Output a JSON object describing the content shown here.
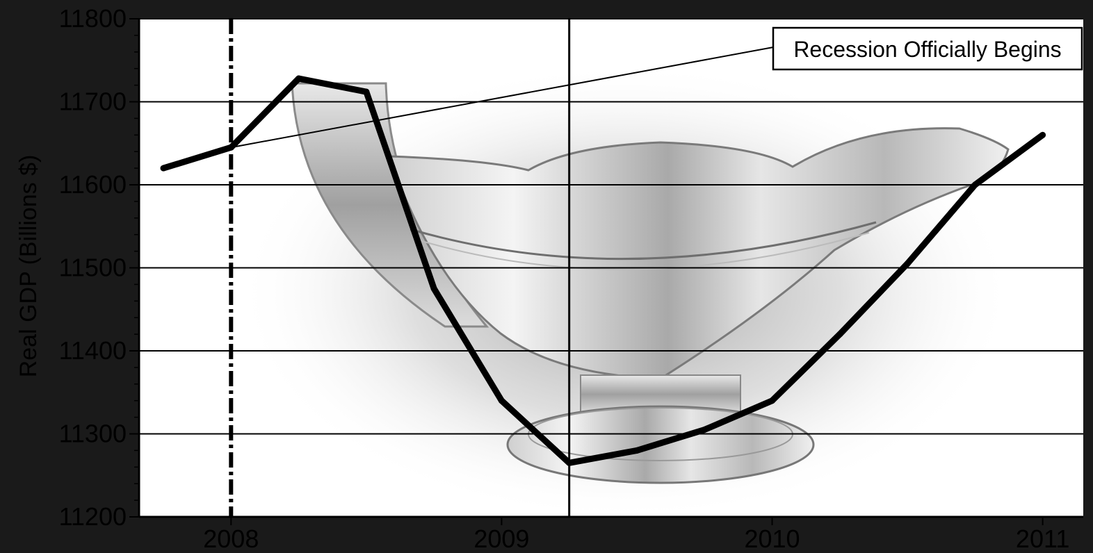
{
  "colors": {
    "frame": "#1a1a1a",
    "plot_background": "#ffffff",
    "line": "#000000",
    "gridline": "#000000"
  },
  "chart_data": {
    "type": "line",
    "ylabel": "Real GDP (Billions $)",
    "xlim": [
      2007.66,
      2011.15
    ],
    "ylim": [
      11200,
      11800
    ],
    "y_ticks": [
      "11200",
      "11300",
      "11400",
      "11500",
      "11600",
      "11700",
      "11800"
    ],
    "x_ticks": [
      "2008",
      "2009",
      "2010",
      "2011"
    ],
    "grid": "horizontal",
    "background_image": "gravy-boat-photo",
    "series": [
      {
        "x": [
          2007.75,
          2008.0,
          2008.25,
          2008.5,
          2008.75,
          2009.0,
          2009.25,
          2009.5,
          2009.75,
          2010.0,
          2010.25,
          2010.5,
          2010.75,
          2011.0
        ],
        "values": [
          11620,
          11645,
          11728,
          11712,
          11475,
          11340,
          11265,
          11280,
          11305,
          11340,
          11420,
          11505,
          11600,
          11660
        ]
      }
    ],
    "annotations": [
      {
        "text": "Recession Officially Begins",
        "points_to_x": 2008.0,
        "points_to_y": 11645
      }
    ],
    "reference_lines": [
      {
        "x": 2008.0,
        "style": "dash-dot"
      },
      {
        "x": 2009.25,
        "style": "solid"
      }
    ]
  }
}
